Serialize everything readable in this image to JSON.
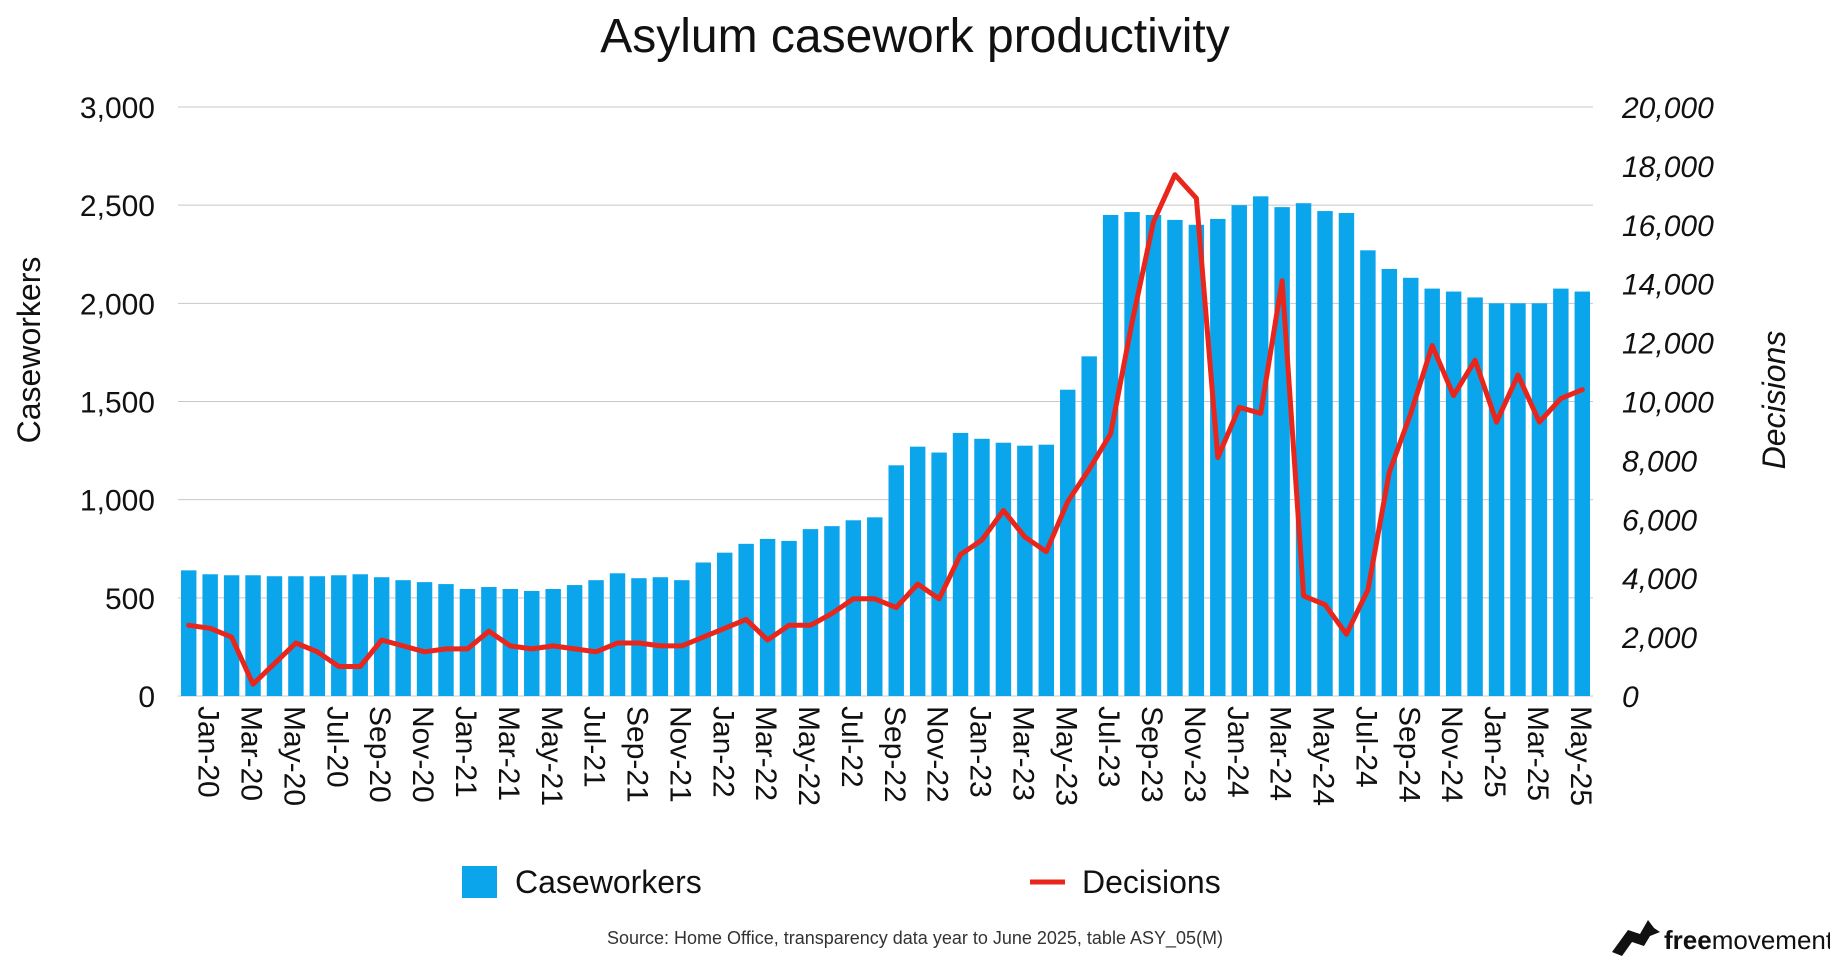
{
  "chart_data": {
    "type": "bar+line",
    "title": "Asylum casework productivity",
    "ylabel_left": "Caseworkers",
    "ylabel_right": "Decisions",
    "ylim_left": [
      0,
      3000
    ],
    "ylim_right": [
      0,
      20000
    ],
    "yticks_left": [
      "0",
      "500",
      "1,000",
      "1,500",
      "2,000",
      "2,500",
      "3,000"
    ],
    "yticks_right": [
      "0",
      "2,000",
      "4,000",
      "6,000",
      "8,000",
      "10,000",
      "12,000",
      "14,000",
      "16,000",
      "18,000",
      "20,000"
    ],
    "grid": true,
    "legend_position": "bottom",
    "categories": [
      "Jan-20",
      "Feb-20",
      "Mar-20",
      "Apr-20",
      "May-20",
      "Jun-20",
      "Jul-20",
      "Aug-20",
      "Sep-20",
      "Oct-20",
      "Nov-20",
      "Dec-20",
      "Jan-21",
      "Feb-21",
      "Mar-21",
      "Apr-21",
      "May-21",
      "Jun-21",
      "Jul-21",
      "Aug-21",
      "Sep-21",
      "Oct-21",
      "Nov-21",
      "Dec-21",
      "Jan-22",
      "Feb-22",
      "Mar-22",
      "Apr-22",
      "May-22",
      "Jun-22",
      "Jul-22",
      "Aug-22",
      "Sep-22",
      "Oct-22",
      "Nov-22",
      "Dec-22",
      "Jan-23",
      "Feb-23",
      "Mar-23",
      "Apr-23",
      "May-23",
      "Jun-23",
      "Jul-23",
      "Aug-23",
      "Sep-23",
      "Oct-23",
      "Nov-23",
      "Dec-23",
      "Jan-24",
      "Feb-24",
      "Mar-24",
      "Apr-24",
      "May-24",
      "Jun-24",
      "Jul-24",
      "Aug-24",
      "Sep-24",
      "Oct-24",
      "Nov-24",
      "Dec-24",
      "Jan-25",
      "Feb-25",
      "Mar-25",
      "Apr-25",
      "May-25",
      "Jun-25"
    ],
    "x_tick_labels": [
      "Jan-20",
      "Mar-20",
      "May-20",
      "Jul-20",
      "Sep-20",
      "Nov-20",
      "Jan-21",
      "Mar-21",
      "May-21",
      "Jul-21",
      "Sep-21",
      "Nov-21",
      "Jan-22",
      "Mar-22",
      "May-22",
      "Jul-22",
      "Sep-22",
      "Nov-22",
      "Jan-23",
      "Mar-23",
      "May-23",
      "Jul-23",
      "Sep-23",
      "Nov-23",
      "Jan-24",
      "Mar-24",
      "May-24",
      "Jul-24",
      "Sep-24",
      "Nov-24",
      "Jan-25",
      "Mar-25",
      "May-25"
    ],
    "series": [
      {
        "name": "Caseworkers",
        "kind": "bar",
        "axis": "left",
        "color": "#0ba5ec",
        "values": [
          640,
          620,
          615,
          615,
          610,
          610,
          610,
          615,
          620,
          605,
          590,
          580,
          570,
          545,
          555,
          545,
          535,
          545,
          565,
          590,
          625,
          600,
          605,
          590,
          680,
          730,
          775,
          800,
          790,
          850,
          865,
          895,
          910,
          1175,
          1270,
          1240,
          1340,
          1310,
          1290,
          1275,
          1280,
          1560,
          1730,
          2450,
          2465,
          2450,
          2425,
          2400,
          2430,
          2500,
          2545,
          2490,
          2510,
          2470,
          2460,
          2270,
          2175,
          2130,
          2075,
          2060,
          2030,
          2000,
          2000,
          2000,
          2075,
          2060
        ]
      },
      {
        "name": "Decisions",
        "kind": "line",
        "axis": "right",
        "color": "#e8261b",
        "values": [
          2400,
          2300,
          2000,
          400,
          1100,
          1800,
          1500,
          1000,
          1000,
          1900,
          1700,
          1500,
          1600,
          1600,
          2200,
          1700,
          1600,
          1700,
          1600,
          1500,
          1800,
          1800,
          1700,
          1700,
          2000,
          2300,
          2600,
          1900,
          2400,
          2400,
          2800,
          3300,
          3300,
          3000,
          3800,
          3300,
          4800,
          5300,
          6300,
          5400,
          4900,
          6600,
          7700,
          8900,
          12700,
          16100,
          17700,
          16900,
          8100,
          9800,
          9600,
          14100,
          3400,
          3100,
          2100,
          3600,
          7600,
          9600,
          11900,
          10200,
          11400,
          9300,
          10900,
          9300,
          10100,
          10400
        ]
      }
    ],
    "source": "Source: Home Office, transparency data year to June 2025, table ASY_05(M)"
  },
  "branding": {
    "brand_part1": "free",
    "brand_part2": "movement",
    "logo": "bird-logo-icon"
  }
}
